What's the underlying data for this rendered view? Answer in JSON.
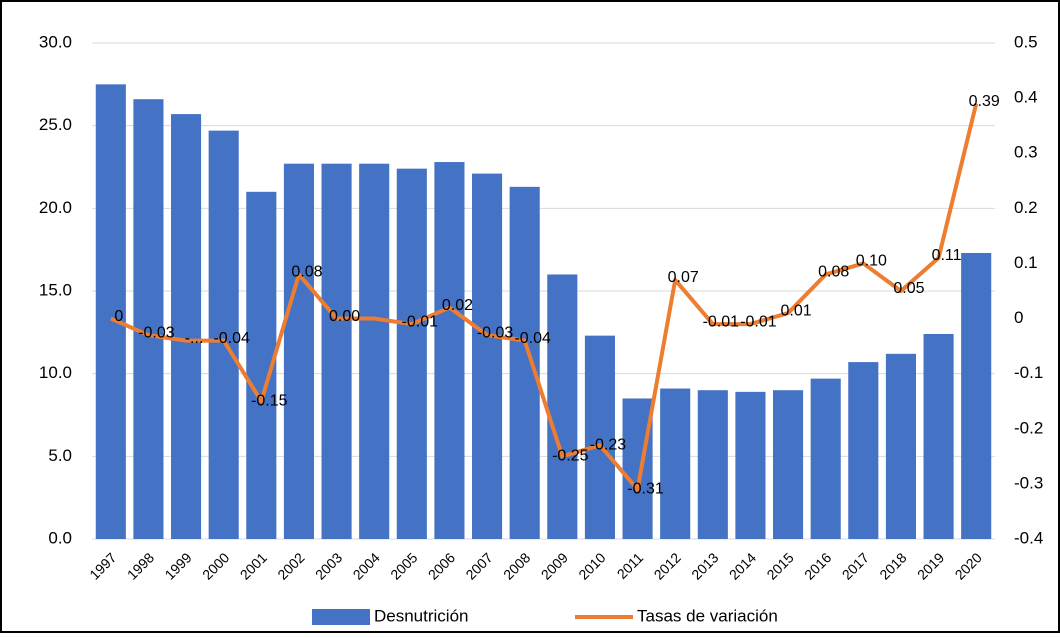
{
  "chart_data": {
    "type": "combo",
    "categories": [
      "1997",
      "1998",
      "1999",
      "2000",
      "2001",
      "2002",
      "2003",
      "2004",
      "2005",
      "2006",
      "2007",
      "2008",
      "2009",
      "2010",
      "2011",
      "2012",
      "2013",
      "2014",
      "2015",
      "2016",
      "2017",
      "2018",
      "2019",
      "2020"
    ],
    "series": [
      {
        "name": "Desnutrición",
        "type": "bar",
        "color": "#4472c4",
        "values": [
          27.5,
          26.6,
          25.7,
          24.7,
          21.0,
          22.7,
          22.7,
          22.7,
          22.4,
          22.8,
          22.1,
          21.3,
          16.0,
          12.3,
          8.5,
          9.1,
          9.0,
          8.9,
          9.0,
          9.7,
          10.7,
          11.2,
          12.4,
          17.3
        ]
      },
      {
        "name": "Tasas de variación",
        "type": "line",
        "axis": "y2",
        "color": "#ed7d31",
        "values": [
          0,
          -0.03,
          -0.04,
          -0.04,
          -0.15,
          0.08,
          0,
          0,
          -0.01,
          0.02,
          -0.03,
          -0.04,
          -0.25,
          -0.23,
          -0.31,
          0.07,
          -0.01,
          -0.01,
          0.01,
          0.08,
          0.1,
          0.05,
          0.11,
          0.39
        ],
        "value_labels": [
          "0",
          "-0.03",
          "-...",
          "-0.04",
          "-0.15",
          "0.08",
          "0.00",
          null,
          "-0.01",
          "0.02",
          "-0.03",
          "-0.04",
          "-0.25",
          "-0.23",
          "-0.31",
          "0.07",
          "-0.01",
          "-0.01",
          "0.01",
          "0.08",
          "0.10",
          "0.05",
          "0.11",
          "0.39"
        ]
      }
    ],
    "ylim": [
      0,
      30
    ],
    "yticks": [
      {
        "value": 0,
        "label": "0.0"
      },
      {
        "value": 5,
        "label": "5.0"
      },
      {
        "value": 10,
        "label": "10.0"
      },
      {
        "value": 15,
        "label": "15.0"
      },
      {
        "value": 20,
        "label": "20.0"
      },
      {
        "value": 25,
        "label": "25.0"
      },
      {
        "value": 30,
        "label": "30.0"
      }
    ],
    "y2lim": [
      -0.4,
      0.5
    ],
    "y2ticks": [
      -0.4,
      -0.3,
      -0.2,
      -0.1,
      0,
      0.1,
      0.2,
      0.3,
      0.4,
      0.5
    ],
    "grid": true,
    "legend": "bottom"
  }
}
